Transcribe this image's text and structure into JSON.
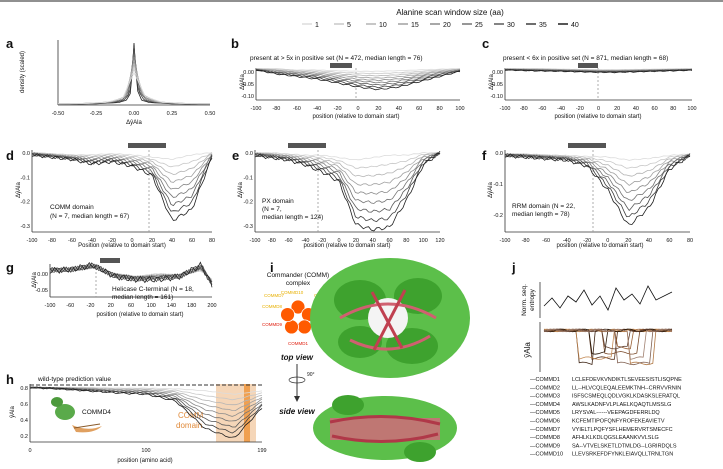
{
  "legend": {
    "title": "Alanine scan window size (aa)",
    "items": [
      "1",
      "5",
      "10",
      "15",
      "20",
      "25",
      "30",
      "35",
      "40"
    ]
  },
  "panels": {
    "a": {
      "label": "a",
      "ylabel": "density (scaled)",
      "xlabel": "ΔŷAla",
      "xticks": [
        "-0.50",
        "-0.25",
        "0.00",
        "0.25",
        "0.50"
      ]
    },
    "b": {
      "label": "b",
      "title": "present at > 5x in positive set (N = 472, median length = 76)",
      "ylabel": "ΔŷAla",
      "xlabel": "position (relative to domain start)",
      "yticks": [
        "0.00",
        "-0.05",
        "-0.10"
      ],
      "xticks": [
        "-100",
        "-80",
        "-60",
        "-40",
        "-20",
        "0",
        "20",
        "40",
        "60",
        "80",
        "100"
      ]
    },
    "c": {
      "label": "c",
      "title": "present < 6x in positive set (N = 871, median length = 68)",
      "ylabel": "ΔŷAla",
      "xlabel": "position (relative to domain start)",
      "yticks": [
        "0.00",
        "-0.05",
        "-0.10"
      ],
      "xticks": [
        "-100",
        "-80",
        "-60",
        "-40",
        "-20",
        "0",
        "20",
        "40",
        "60",
        "80",
        "100"
      ]
    },
    "d": {
      "label": "d",
      "annotation": [
        "COMM domain",
        "(N = 7, median length = 67)"
      ],
      "ylabel": "ΔŷAla",
      "xlabel": "Position (relative to domain start)",
      "yticks": [
        "0.0",
        "-0.1",
        "-0.2",
        "-0.3"
      ],
      "xticks": [
        "-100",
        "-80",
        "-60",
        "-40",
        "-20",
        "0",
        "20",
        "40",
        "60",
        "80"
      ]
    },
    "e": {
      "label": "e",
      "annotation": [
        "PX domain",
        "(N = 7,",
        "median length = 124)"
      ],
      "ylabel": "ΔŷAla",
      "xlabel": "position (relative to domain start)",
      "yticks": [
        "0.0",
        "-0.1",
        "-0.2",
        "-0.3"
      ],
      "xticks": [
        "-100",
        "-80",
        "-60",
        "-40",
        "-20",
        "0",
        "20",
        "40",
        "60",
        "80",
        "100",
        "120"
      ]
    },
    "f": {
      "label": "f",
      "annotation": [
        "RRM domain (N = 22,",
        "median length = 78)"
      ],
      "ylabel": "ΔŷAla",
      "xlabel": "position (relative to domain start)",
      "yticks": [
        "0.0",
        "-0.1",
        "-0.2"
      ],
      "xticks": [
        "-100",
        "-80",
        "-60",
        "-40",
        "-20",
        "0",
        "20",
        "40",
        "60",
        "80"
      ]
    },
    "g": {
      "label": "g",
      "annotation": [
        "Helicase C-terminal (N = 18,",
        "median length = 161)"
      ],
      "ylabel": "ΔŷAla",
      "xlabel": "position (relative to domain start)",
      "yticks": [
        "0.00",
        "-0.05"
      ],
      "xticks": [
        "-100",
        "-60",
        "-20",
        "20",
        "60",
        "100",
        "140",
        "180",
        "200"
      ]
    },
    "h": {
      "label": "h",
      "wt_label": "wild-type prediction value",
      "ylabel": "ŷAla",
      "xlabel": "position (amino acid)",
      "yticks": [
        "0.8",
        "0.6",
        "0.4",
        "0.2"
      ],
      "xticks": [
        "0",
        "100",
        "199"
      ],
      "protein_label": "COMMD4",
      "domain_label": [
        "COMM",
        "domain"
      ]
    },
    "i": {
      "label": "i",
      "complex_title": [
        "Commander (COMM)",
        "complex"
      ],
      "subunits": [
        "COMMD10",
        "COMMD2",
        "COMMD3",
        "COMMD4",
        "COMMD1",
        "COMMD9",
        "COMMD8",
        "COMMD7"
      ],
      "top_view": "top view",
      "side_view": "side view",
      "rotation": "90°"
    },
    "j": {
      "label": "j",
      "ylabel_top": [
        "Norm. seq.",
        "entropy"
      ],
      "ylabel_bottom": "ŷAla",
      "alignment": [
        {
          "name": "COMMD1",
          "seq": "LCLEFDEVKVNDIKTLSEVEESISTLISQPNE"
        },
        {
          "name": "COMMD2",
          "seq": "LL--HLVCQLEQALEEMKTNH--CRRVVRNIN"
        },
        {
          "name": "COMMD3",
          "seq": "ISFSCSMEQLQDLVGKLKDASKSLERATQL"
        },
        {
          "name": "COMMD4",
          "seq": "AWSLKADNFVLPLAELKQAQTLMSSLG"
        },
        {
          "name": "COMMD5",
          "seq": "LRYSVAL------VEEPAGDFERRLDQ"
        },
        {
          "name": "COMMD6",
          "seq": "KCFEMTIPOFQNFYROFEKEAVIETV"
        },
        {
          "name": "COMMD7",
          "seq": "VYIELTLPQFYSFLHEMERVRTSMECFC"
        },
        {
          "name": "COMMD8",
          "seq": "AFHLKLKDLQGSLEAANKVVLSLG"
        },
        {
          "name": "COMMD9",
          "seq": "SA--VTVELSKETLDTMLDG--LGRIRDQLS"
        },
        {
          "name": "COMMD10",
          "seq": "LLEVSRKEFDFYNKLEIAVQLLTRNLTGN"
        }
      ]
    }
  },
  "chart_data": [
    {
      "type": "line",
      "panel": "a",
      "title": "",
      "xlabel": "ΔŷAla",
      "ylabel": "density (scaled)",
      "xlim": [
        -0.5,
        0.5
      ],
      "series": [
        {
          "values": [
            0.01,
            0.02,
            0.04,
            0.08,
            0.2,
            1.0,
            0.25,
            0.08,
            0.04,
            0.02,
            0.01
          ],
          "x": [
            -0.5,
            -0.25,
            -0.1,
            -0.05,
            -0.02,
            0.0,
            0.02,
            0.05,
            0.1,
            0.25,
            0.5
          ]
        }
      ]
    },
    {
      "type": "line",
      "panel": "b",
      "xlabel": "position (relative to domain start)",
      "ylim": [
        -0.12,
        0.01
      ],
      "x": [
        -100,
        -80,
        -60,
        -40,
        -20,
        0,
        20,
        40,
        60,
        80,
        100
      ],
      "series": [
        {
          "name": "1",
          "values": [
            0.0,
            0.0,
            -0.005,
            -0.005,
            -0.008,
            -0.01,
            -0.01,
            -0.008,
            -0.005,
            -0.002,
            0.0
          ]
        },
        {
          "name": "20",
          "values": [
            -0.003,
            -0.01,
            -0.015,
            -0.02,
            -0.03,
            -0.04,
            -0.045,
            -0.04,
            -0.03,
            -0.015,
            -0.005
          ]
        },
        {
          "name": "40",
          "values": [
            -0.005,
            -0.02,
            -0.03,
            -0.04,
            -0.055,
            -0.07,
            -0.08,
            -0.07,
            -0.05,
            -0.03,
            -0.01
          ]
        }
      ]
    },
    {
      "type": "line",
      "panel": "c",
      "xlabel": "position (relative to domain start)",
      "ylim": [
        -0.12,
        0.01
      ],
      "x": [
        -100,
        -80,
        -60,
        -40,
        -20,
        0,
        20,
        40,
        60,
        80,
        100
      ],
      "series": [
        {
          "name": "1",
          "values": [
            0.0,
            0.0,
            0.0,
            -0.002,
            -0.003,
            -0.004,
            -0.004,
            -0.003,
            -0.002,
            -0.001,
            0.0
          ]
        },
        {
          "name": "40",
          "values": [
            -0.005,
            -0.007,
            -0.009,
            -0.01,
            -0.012,
            -0.014,
            -0.014,
            -0.012,
            -0.01,
            -0.008,
            -0.006
          ]
        }
      ]
    },
    {
      "type": "line",
      "panel": "d",
      "xlabel": "Position (relative to domain start)",
      "ylim": [
        -0.35,
        0.02
      ],
      "x": [
        -100,
        -80,
        -60,
        -40,
        -20,
        0,
        20,
        40,
        60,
        80
      ],
      "series": [
        {
          "name": "1",
          "values": [
            0.0,
            -0.005,
            -0.01,
            -0.01,
            -0.005,
            -0.01,
            -0.02,
            -0.03,
            -0.01,
            0.0
          ]
        },
        {
          "name": "40",
          "values": [
            -0.01,
            -0.02,
            -0.03,
            -0.05,
            -0.04,
            -0.06,
            -0.1,
            -0.3,
            -0.25,
            -0.02
          ]
        }
      ]
    },
    {
      "type": "line",
      "panel": "e",
      "xlabel": "position (relative to domain start)",
      "ylim": [
        -0.33,
        0.02
      ],
      "x": [
        -100,
        -80,
        -60,
        -40,
        -20,
        0,
        20,
        40,
        60,
        80,
        100,
        120
      ],
      "series": [
        {
          "name": "1",
          "values": [
            0.0,
            0.0,
            -0.005,
            -0.01,
            -0.01,
            -0.02,
            -0.03,
            -0.02,
            -0.01,
            -0.01,
            0.0,
            0.0
          ]
        },
        {
          "name": "40",
          "values": [
            -0.01,
            -0.02,
            -0.03,
            -0.05,
            -0.08,
            -0.12,
            -0.3,
            -0.32,
            -0.31,
            -0.2,
            -0.05,
            0.0
          ]
        }
      ]
    },
    {
      "type": "line",
      "panel": "f",
      "xlabel": "position (relative to domain start)",
      "ylim": [
        -0.26,
        0.02
      ],
      "x": [
        -100,
        -80,
        -60,
        -40,
        -20,
        0,
        20,
        40,
        60,
        80
      ],
      "series": [
        {
          "name": "1",
          "values": [
            0.0,
            0.0,
            -0.003,
            -0.005,
            -0.008,
            -0.01,
            -0.02,
            -0.015,
            -0.005,
            0.0
          ]
        },
        {
          "name": "40",
          "values": [
            -0.005,
            -0.01,
            -0.015,
            -0.02,
            -0.04,
            -0.12,
            -0.24,
            -0.18,
            -0.05,
            -0.005
          ]
        }
      ]
    },
    {
      "type": "line",
      "panel": "g",
      "xlabel": "position (relative to domain start)",
      "ylim": [
        -0.08,
        0.04
      ],
      "x": [
        -100,
        -60,
        -20,
        20,
        60,
        100,
        140,
        180,
        200
      ],
      "series": [
        {
          "name": "1",
          "values": [
            0.02,
            0.01,
            0.02,
            0.0,
            -0.01,
            0.0,
            -0.005,
            0.01,
            -0.02
          ]
        },
        {
          "name": "40",
          "values": [
            0.01,
            0.015,
            0.03,
            -0.01,
            -0.02,
            -0.02,
            -0.01,
            0.03,
            -0.04
          ]
        }
      ]
    },
    {
      "type": "line",
      "panel": "h",
      "xlabel": "position (amino acid)",
      "ylabel": "ŷAla",
      "xlim": [
        0,
        199
      ],
      "ylim": [
        0.0,
        0.85
      ],
      "x": [
        0,
        25,
        50,
        75,
        100,
        125,
        150,
        175,
        199
      ],
      "series": [
        {
          "name": "1",
          "values": [
            0.8,
            0.8,
            0.8,
            0.79,
            0.79,
            0.78,
            0.75,
            0.7,
            0.75
          ]
        },
        {
          "name": "40",
          "values": [
            0.8,
            0.78,
            0.75,
            0.72,
            0.7,
            0.6,
            0.2,
            0.05,
            0.5
          ]
        }
      ]
    }
  ]
}
